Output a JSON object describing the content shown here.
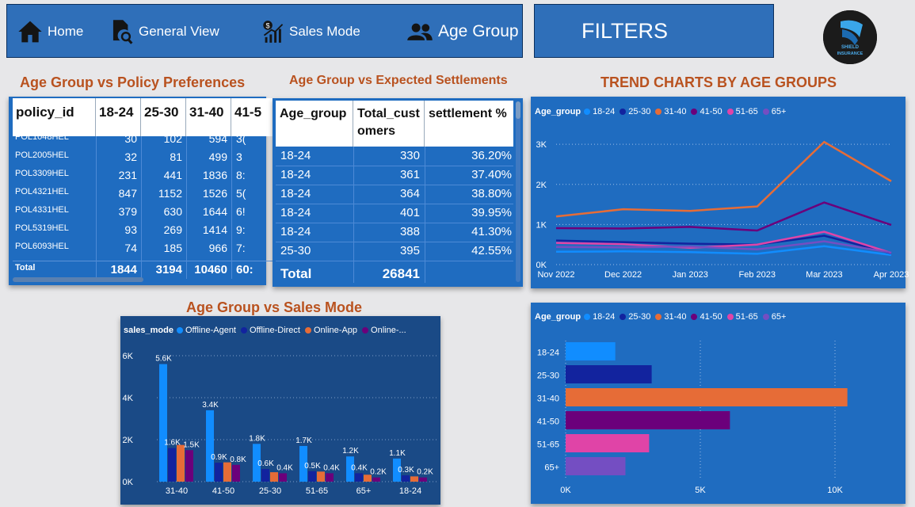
{
  "nav": {
    "home": "Home",
    "general_view": "General View",
    "sales_mode": "Sales Mode",
    "age_group": "Age Group",
    "filters": "FILTERS"
  },
  "logo": {
    "line1": "SHIELD",
    "line2": "INSURANCE"
  },
  "policy_table": {
    "title": "Age Group vs Policy Preferences",
    "columns": [
      "policy_id",
      "18-24",
      "25-30",
      "31-40",
      "41-5"
    ],
    "rows": [
      [
        "POL1048HEL",
        "30",
        "102",
        "594",
        "3("
      ],
      [
        "POL2005HEL",
        "32",
        "81",
        "499",
        "3"
      ],
      [
        "POL3309HEL",
        "231",
        "441",
        "1836",
        "8:"
      ],
      [
        "POL4321HEL",
        "847",
        "1152",
        "1526",
        "5("
      ],
      [
        "POL4331HEL",
        "379",
        "630",
        "1644",
        "6!"
      ],
      [
        "POL5319HEL",
        "93",
        "269",
        "1414",
        "9:"
      ],
      [
        "POL6093HEL",
        "74",
        "185",
        "966",
        "7:"
      ]
    ],
    "total_label": "Total",
    "totals": [
      "1844",
      "3194",
      "10460",
      "60:"
    ]
  },
  "settlement_table": {
    "title": "Age Group vs Expected Settlements",
    "col1": "Age_group",
    "col2_line1": "Total_cust",
    "col2_line2": "omers",
    "col3": "settlement %",
    "rows": [
      [
        "18-24",
        "330",
        "36.20%"
      ],
      [
        "18-24",
        "361",
        "37.40%"
      ],
      [
        "18-24",
        "364",
        "38.80%"
      ],
      [
        "18-24",
        "401",
        "39.95%"
      ],
      [
        "18-24",
        "388",
        "41.30%"
      ],
      [
        "25-30",
        "395",
        "42.55%"
      ]
    ],
    "total_label": "Total",
    "total_value": "26841"
  },
  "colors": {
    "18-24": "#118dff",
    "25-30": "#12239e",
    "31-40": "#e66c37",
    "41-50": "#6b007b",
    "51-65": "#e044a7",
    "65+": "#744ec2"
  },
  "trend_chart": {
    "title": "TREND CHARTS BY AGE GROUPS",
    "chart_data": {
      "type": "line",
      "legend_title": "Age_group",
      "x": [
        "Nov 2022",
        "Dec 2022",
        "Jan 2023",
        "Feb 2023",
        "Mar 2023",
        "Apr 2023"
      ],
      "yticks": [
        "0K",
        "1K",
        "2K",
        "3K"
      ],
      "ylim": [
        0,
        3300
      ],
      "series": [
        {
          "name": "18-24",
          "values": [
            320,
            330,
            310,
            270,
            460,
            240
          ]
        },
        {
          "name": "25-30",
          "values": [
            600,
            560,
            520,
            500,
            720,
            280
          ]
        },
        {
          "name": "31-40",
          "values": [
            1200,
            1380,
            1340,
            1450,
            3060,
            2080
          ]
        },
        {
          "name": "41-50",
          "values": [
            910,
            900,
            940,
            850,
            1550,
            990
          ]
        },
        {
          "name": "51-65",
          "values": [
            540,
            510,
            420,
            500,
            820,
            290
          ]
        },
        {
          "name": "65+",
          "values": [
            440,
            430,
            450,
            380,
            580,
            300
          ]
        }
      ]
    }
  },
  "sales_chart": {
    "title": "Age Group vs Sales Mode",
    "chart_data": {
      "type": "bar",
      "legend_title": "sales_mode",
      "categories": [
        "31-40",
        "41-50",
        "25-30",
        "51-65",
        "65+",
        "18-24"
      ],
      "yticks": [
        "0K",
        "2K",
        "4K",
        "6K"
      ],
      "ylim": [
        0,
        6000
      ],
      "series": [
        {
          "name": "Offline-Agent",
          "color": "#118dff",
          "values": [
            5600,
            3400,
            1800,
            1700,
            1200,
            1100
          ],
          "labels": [
            "5.6K",
            "3.4K",
            "1.8K",
            "1.7K",
            "1.2K",
            "1.1K"
          ]
        },
        {
          "name": "Offline-Direct",
          "color": "#12239e",
          "values": [
            1600,
            900,
            600,
            500,
            400,
            300
          ],
          "labels": [
            "1.6K",
            "0.9K",
            "0.6K",
            "0.5K",
            "0.4K",
            "0.3K"
          ]
        },
        {
          "name": "Online-App",
          "color": "#e66c37",
          "values": [
            1750,
            920,
            450,
            480,
            330,
            250
          ],
          "labels": [
            "",
            "",
            "",
            "",
            "",
            ""
          ]
        },
        {
          "name": "Online-...",
          "color": "#6b007b",
          "values": [
            1500,
            800,
            400,
            400,
            200,
            200
          ],
          "labels": [
            "1.5K",
            "0.8K",
            "0.4K",
            "0.4K",
            "0.2K",
            "0.2K"
          ]
        }
      ]
    }
  },
  "hbar_chart": {
    "chart_data": {
      "type": "bar",
      "orientation": "horizontal",
      "legend_title": "Age_group",
      "categories": [
        "18-24",
        "25-30",
        "31-40",
        "41-50",
        "51-65",
        "65+"
      ],
      "values": [
        1844,
        3194,
        10460,
        6100,
        3100,
        2220
      ],
      "xticks": [
        "0K",
        "5K",
        "10K"
      ],
      "xlim": [
        0,
        12000
      ]
    }
  }
}
